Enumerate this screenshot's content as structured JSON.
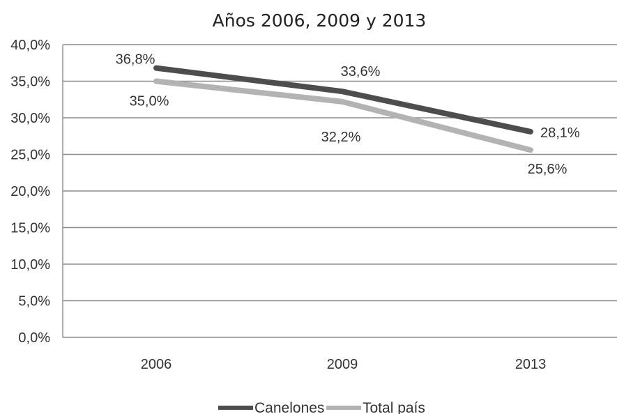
{
  "chart_data": {
    "type": "line",
    "title": "Años 2006, 2009 y 2013",
    "categories": [
      "2006",
      "2009",
      "2013"
    ],
    "y_tick_labels": [
      "0,0%",
      "5,0%",
      "10,0%",
      "15,0%",
      "20,0%",
      "25,0%",
      "30,0%",
      "35,0%",
      "40,0%"
    ],
    "ylim": [
      0,
      40
    ],
    "grid": true,
    "legend_position": "bottom",
    "series": [
      {
        "name": "Canelones",
        "color": "#4d4d4d",
        "values": [
          36.8,
          33.6,
          28.1
        ],
        "labels": [
          "36,8%",
          "33,6%",
          "28,1%"
        ]
      },
      {
        "name": "Total país",
        "color": "#b3b3b3",
        "values": [
          35.0,
          32.2,
          25.6
        ],
        "labels": [
          "35,0%",
          "32,2%",
          "25,6%"
        ]
      }
    ]
  }
}
